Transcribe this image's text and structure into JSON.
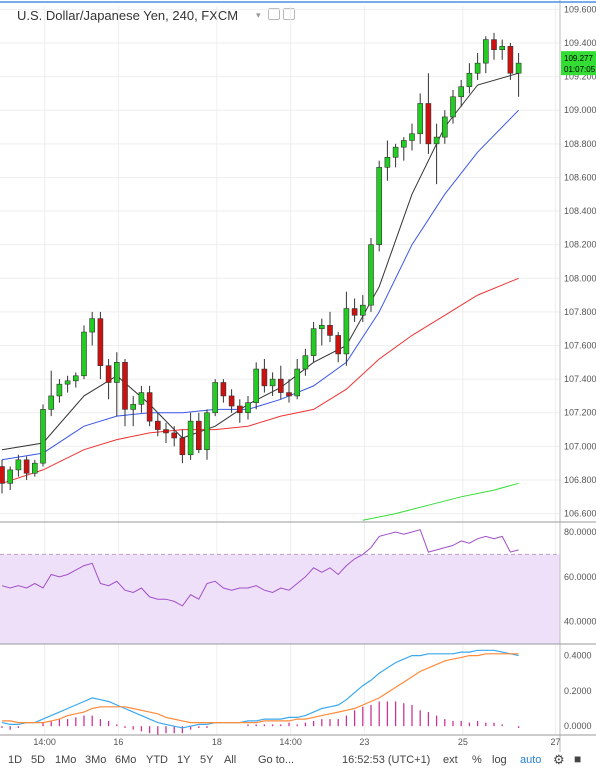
{
  "header": {
    "title": "U.S. Dollar/Japanese Yen, 240, FXCM",
    "dropdown_icon": "chevron-down-icon",
    "icons": [
      "settings-icon",
      "hide-icon"
    ]
  },
  "price_tags": {
    "price": "109.277",
    "countdown": "01:07:05"
  },
  "bottombar": {
    "ranges": [
      "1D",
      "5D",
      "1Mo",
      "3Mo",
      "6Mo",
      "YTD",
      "1Y",
      "5Y",
      "All"
    ],
    "goto": "Go to...",
    "time": "16:52:53 (UTC+1)",
    "ext": "ext",
    "percent": "%",
    "log": "log",
    "auto": "auto",
    "settings_icon": "gear-icon"
  },
  "colors": {
    "up": "#22cc22",
    "down": "#cc1111",
    "ma_short": "#333333",
    "ma_mid": "#3a57e8",
    "ma_long": "#ee3333",
    "ma_slow": "#33dd33",
    "rsi": "#a04fc8",
    "rsi_band": "#efe0fa",
    "macd": "#3aa8ee",
    "signal": "#ff8a3a",
    "hist": "#cc3399",
    "price_tag": "#33dd33"
  },
  "chart_data": [
    {
      "type": "candlestick",
      "title": "U.S. Dollar/Japanese Yen, 240, FXCM",
      "x_ticks": [
        "14:00",
        "16",
        "18",
        "14:00",
        "23",
        "25",
        "27"
      ],
      "y_ticks": [
        "106.600",
        "106.800",
        "107.000",
        "107.200",
        "107.400",
        "107.600",
        "107.800",
        "108.000",
        "108.200",
        "108.400",
        "108.600",
        "108.800",
        "109.000",
        "109.200",
        "109.400",
        "109.600"
      ],
      "ylim": [
        106.55,
        109.62
      ],
      "grid": true,
      "candles": [
        [
          106.88,
          106.92,
          106.72,
          106.78
        ],
        [
          106.78,
          106.88,
          106.74,
          106.86
        ],
        [
          106.86,
          106.95,
          106.82,
          106.92
        ],
        [
          106.92,
          106.94,
          106.8,
          106.84
        ],
        [
          106.84,
          106.92,
          106.82,
          106.9
        ],
        [
          106.9,
          107.25,
          106.88,
          107.22
        ],
        [
          107.22,
          107.45,
          107.18,
          107.3
        ],
        [
          107.3,
          107.4,
          107.26,
          107.37
        ],
        [
          107.37,
          107.42,
          107.32,
          107.39
        ],
        [
          107.39,
          107.44,
          107.35,
          107.42
        ],
        [
          107.42,
          107.72,
          107.4,
          107.68
        ],
        [
          107.68,
          107.8,
          107.6,
          107.76
        ],
        [
          107.76,
          107.8,
          107.4,
          107.48
        ],
        [
          107.48,
          107.52,
          107.28,
          107.38
        ],
        [
          107.38,
          107.56,
          107.18,
          107.5
        ],
        [
          107.5,
          107.52,
          107.12,
          107.22
        ],
        [
          107.22,
          107.3,
          107.12,
          107.25
        ],
        [
          107.25,
          107.36,
          107.2,
          107.32
        ],
        [
          107.32,
          107.36,
          107.12,
          107.15
        ],
        [
          107.15,
          107.2,
          107.06,
          107.1
        ],
        [
          107.1,
          107.14,
          107.02,
          107.08
        ],
        [
          107.08,
          107.12,
          107.0,
          107.05
        ],
        [
          107.05,
          107.1,
          106.9,
          106.95
        ],
        [
          106.95,
          107.2,
          106.92,
          107.15
        ],
        [
          107.15,
          107.2,
          106.96,
          106.98
        ],
        [
          106.98,
          107.22,
          106.92,
          107.2
        ],
        [
          107.2,
          107.4,
          107.18,
          107.38
        ],
        [
          107.38,
          107.4,
          107.26,
          107.3
        ],
        [
          107.3,
          107.34,
          107.2,
          107.24
        ],
        [
          107.24,
          107.28,
          107.14,
          107.2
        ],
        [
          107.2,
          107.3,
          107.16,
          107.26
        ],
        [
          107.26,
          107.5,
          107.22,
          107.46
        ],
        [
          107.46,
          107.52,
          107.32,
          107.36
        ],
        [
          107.36,
          107.44,
          107.3,
          107.4
        ],
        [
          107.4,
          107.48,
          107.28,
          107.32
        ],
        [
          107.32,
          107.4,
          107.26,
          107.3
        ],
        [
          107.3,
          107.52,
          107.28,
          107.46
        ],
        [
          107.46,
          107.58,
          107.42,
          107.54
        ],
        [
          107.54,
          107.74,
          107.5,
          107.7
        ],
        [
          107.7,
          107.76,
          107.6,
          107.72
        ],
        [
          107.72,
          107.8,
          107.62,
          107.66
        ],
        [
          107.66,
          107.68,
          107.5,
          107.55
        ],
        [
          107.55,
          107.92,
          107.48,
          107.82
        ],
        [
          107.82,
          107.88,
          107.74,
          107.78
        ],
        [
          107.78,
          107.9,
          107.74,
          107.84
        ],
        [
          107.84,
          108.24,
          107.8,
          108.2
        ],
        [
          108.2,
          108.7,
          108.16,
          108.66
        ],
        [
          108.66,
          108.82,
          108.58,
          108.72
        ],
        [
          108.72,
          108.8,
          108.66,
          108.78
        ],
        [
          108.78,
          108.84,
          108.7,
          108.82
        ],
        [
          108.82,
          108.92,
          108.76,
          108.86
        ],
        [
          108.86,
          109.1,
          108.8,
          109.04
        ],
        [
          109.04,
          109.22,
          108.74,
          108.8
        ],
        [
          108.8,
          108.92,
          108.56,
          108.84
        ],
        [
          108.84,
          109.0,
          108.8,
          108.96
        ],
        [
          108.96,
          109.12,
          108.92,
          109.08
        ],
        [
          109.08,
          109.18,
          109.02,
          109.14
        ],
        [
          109.14,
          109.28,
          109.1,
          109.22
        ],
        [
          109.22,
          109.34,
          109.18,
          109.28
        ],
        [
          109.28,
          109.44,
          109.22,
          109.42
        ],
        [
          109.42,
          109.46,
          109.3,
          109.36
        ],
        [
          109.36,
          109.42,
          109.3,
          109.38
        ],
        [
          109.38,
          109.4,
          109.18,
          109.22
        ],
        [
          109.22,
          109.34,
          109.08,
          109.28
        ]
      ],
      "series": [
        {
          "name": "",
          "color": "#333333",
          "x": [
            0,
            5,
            10,
            14,
            18,
            22,
            26,
            30,
            34,
            38,
            42,
            46,
            50,
            54,
            58,
            63
          ],
          "values": [
            106.98,
            107.02,
            107.3,
            107.42,
            107.25,
            107.05,
            107.12,
            107.25,
            107.35,
            107.5,
            107.6,
            107.95,
            108.5,
            108.9,
            109.15,
            109.22
          ]
        },
        {
          "name": "",
          "color": "#3a57e8",
          "x": [
            0,
            5,
            10,
            14,
            18,
            22,
            26,
            30,
            34,
            38,
            42,
            46,
            50,
            54,
            58,
            63
          ],
          "values": [
            106.92,
            106.96,
            107.12,
            107.18,
            107.2,
            107.2,
            107.22,
            107.22,
            107.28,
            107.36,
            107.5,
            107.8,
            108.2,
            108.5,
            108.75,
            109.0
          ]
        },
        {
          "name": "",
          "color": "#ee3333",
          "x": [
            0,
            5,
            10,
            14,
            18,
            22,
            26,
            30,
            34,
            38,
            42,
            46,
            50,
            54,
            58,
            63
          ],
          "values": [
            106.78,
            106.86,
            106.98,
            107.04,
            107.08,
            107.1,
            107.1,
            107.12,
            107.18,
            107.22,
            107.34,
            107.52,
            107.66,
            107.78,
            107.9,
            108.0
          ]
        },
        {
          "name": "",
          "color": "#33dd33",
          "x": [
            44,
            48,
            52,
            56,
            60,
            63
          ],
          "values": [
            106.56,
            106.6,
            106.65,
            106.7,
            106.74,
            106.78
          ]
        }
      ]
    },
    {
      "type": "line",
      "y_ticks": [
        "80.0000",
        "60.0000",
        "40.0000"
      ],
      "ylim": [
        30,
        84
      ],
      "bands": [
        30,
        70
      ],
      "series": [
        {
          "name": "",
          "color": "#a04fc8",
          "values": [
            56,
            55,
            56,
            55,
            57,
            55,
            61,
            60,
            61,
            63,
            65,
            66,
            57,
            56,
            58,
            54,
            53,
            55,
            51,
            50,
            50,
            49,
            47,
            52,
            50,
            57,
            58,
            55,
            54,
            55,
            55,
            56,
            54,
            53,
            55,
            54,
            57,
            60,
            64,
            62,
            64,
            61,
            65,
            68,
            70,
            73,
            78,
            79,
            80,
            79,
            80,
            81,
            71,
            72,
            73,
            74,
            76,
            75,
            77,
            78,
            77,
            78,
            71,
            72
          ]
        }
      ]
    },
    {
      "type": "line",
      "y_ticks": [
        "0.4000",
        "0.2000",
        "0.0000"
      ],
      "ylim": [
        -0.05,
        0.46
      ],
      "series": [
        {
          "name": "",
          "color": "#3aa8ee",
          "values": [
            0.02,
            0.01,
            0.01,
            0.02,
            0.02,
            0.04,
            0.06,
            0.08,
            0.1,
            0.12,
            0.14,
            0.16,
            0.15,
            0.14,
            0.12,
            0.1,
            0.08,
            0.06,
            0.04,
            0.02,
            0.01,
            0.0,
            -0.01,
            0.0,
            0.01,
            0.01,
            0.02,
            0.02,
            0.02,
            0.02,
            0.03,
            0.03,
            0.04,
            0.04,
            0.04,
            0.05,
            0.05,
            0.06,
            0.08,
            0.1,
            0.11,
            0.12,
            0.15,
            0.19,
            0.23,
            0.26,
            0.3,
            0.33,
            0.36,
            0.38,
            0.4,
            0.4,
            0.41,
            0.41,
            0.41,
            0.41,
            0.42,
            0.42,
            0.43,
            0.43,
            0.43,
            0.42,
            0.41,
            0.4
          ]
        },
        {
          "name": "",
          "color": "#ff8a3a",
          "values": [
            0.03,
            0.03,
            0.02,
            0.02,
            0.02,
            0.02,
            0.03,
            0.04,
            0.06,
            0.07,
            0.08,
            0.1,
            0.11,
            0.11,
            0.11,
            0.11,
            0.1,
            0.09,
            0.08,
            0.07,
            0.05,
            0.04,
            0.03,
            0.02,
            0.02,
            0.02,
            0.02,
            0.02,
            0.02,
            0.02,
            0.02,
            0.02,
            0.03,
            0.03,
            0.03,
            0.03,
            0.04,
            0.04,
            0.05,
            0.06,
            0.07,
            0.08,
            0.09,
            0.1,
            0.12,
            0.14,
            0.16,
            0.19,
            0.22,
            0.25,
            0.28,
            0.31,
            0.33,
            0.35,
            0.37,
            0.38,
            0.39,
            0.4,
            0.4,
            0.41,
            0.41,
            0.41,
            0.41,
            0.41
          ]
        },
        {
          "name": "",
          "color": "#cc3399",
          "values": [
            -0.01,
            -0.02,
            -0.01,
            0.0,
            0.0,
            0.02,
            0.03,
            0.04,
            0.04,
            0.05,
            0.06,
            0.06,
            0.04,
            0.03,
            0.01,
            -0.01,
            -0.02,
            -0.03,
            -0.04,
            -0.05,
            -0.04,
            -0.04,
            -0.04,
            -0.02,
            -0.01,
            -0.01,
            0.0,
            0.0,
            0.0,
            0.0,
            0.01,
            0.01,
            0.01,
            0.01,
            0.01,
            0.02,
            0.01,
            0.02,
            0.03,
            0.04,
            0.04,
            0.04,
            0.06,
            0.09,
            0.11,
            0.12,
            0.14,
            0.14,
            0.14,
            0.13,
            0.12,
            0.09,
            0.08,
            0.06,
            0.04,
            0.03,
            0.03,
            0.02,
            0.03,
            0.02,
            0.02,
            0.01,
            0.0,
            -0.01
          ]
        }
      ]
    }
  ]
}
